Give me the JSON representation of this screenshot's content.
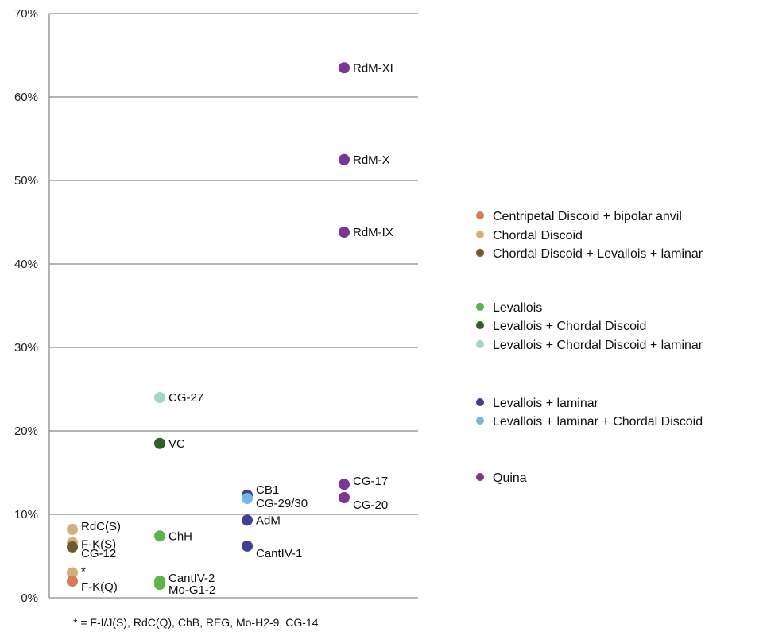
{
  "chart_data": {
    "type": "scatter",
    "title": "",
    "xlabel": "",
    "ylabel": "",
    "ylim": [
      0,
      70
    ],
    "y_ticks": [
      "0%",
      "10%",
      "20%",
      "30%",
      "40%",
      "50%",
      "60%",
      "70%"
    ],
    "grid": true,
    "legend_position": "right",
    "footnote": "* = F-I/J(S), RdC(Q), ChB, REG, Mo-H2-9, CG-14",
    "categories": [
      {
        "name": "Centripetal Discoid + bipolar anvil",
        "color": "#d97b55"
      },
      {
        "name": "Chordal Discoid",
        "color": "#d2b07e"
      },
      {
        "name": "Chordal Discoid + Levallois + laminar",
        "color": "#6e5a2a"
      },
      {
        "name": "Levallois",
        "color": "#5db548"
      },
      {
        "name": "Levallois + Chordal Discoid",
        "color": "#2f5f2a"
      },
      {
        "name": "Levallois + Chordal Discoid + laminar",
        "color": "#a8d4c4"
      },
      {
        "name": "Levallois + laminar",
        "color": "#3f3f9a"
      },
      {
        "name": "Levallois + laminar + Chordal Discoid",
        "color": "#74b8e8"
      },
      {
        "name": "Quina",
        "color": "#7b3596"
      }
    ],
    "points": [
      {
        "label": "RdC(S)",
        "x": 1,
        "y": 8.2,
        "cat": 1
      },
      {
        "label": "F-K(S)",
        "x": 1,
        "y": 6.6,
        "cat": 1
      },
      {
        "label": "CG-12",
        "x": 1,
        "y": 6.1,
        "cat": 2
      },
      {
        "label": "*",
        "x": 1,
        "y": 3.0,
        "cat": 1
      },
      {
        "label": "F-K(Q)",
        "x": 1,
        "y": 2.0,
        "cat": 0
      },
      {
        "label": "CG-27",
        "x": 2,
        "y": 24.0,
        "cat": 5
      },
      {
        "label": "VC",
        "x": 2,
        "y": 18.5,
        "cat": 4
      },
      {
        "label": "ChH",
        "x": 2,
        "y": 7.4,
        "cat": 3
      },
      {
        "label": "CantIV-2",
        "x": 2,
        "y": 2.0,
        "cat": 3
      },
      {
        "label": "Mo-G1-2",
        "x": 2,
        "y": 1.6,
        "cat": 3
      },
      {
        "label": "CB1",
        "x": 3,
        "y": 12.3,
        "cat": 6
      },
      {
        "label": "CG-29/30",
        "x": 3,
        "y": 11.9,
        "cat": 7
      },
      {
        "label": "AdM",
        "x": 3,
        "y": 9.3,
        "cat": 6
      },
      {
        "label": "CantIV-1",
        "x": 3,
        "y": 6.2,
        "cat": 6
      },
      {
        "label": "RdM-XI",
        "x": 4,
        "y": 63.5,
        "cat": 8
      },
      {
        "label": "RdM-X",
        "x": 4,
        "y": 52.5,
        "cat": 8
      },
      {
        "label": "RdM-IX",
        "x": 4,
        "y": 43.8,
        "cat": 8
      },
      {
        "label": "CG-17",
        "x": 4,
        "y": 13.6,
        "cat": 8
      },
      {
        "label": "CG-20",
        "x": 4,
        "y": 12.0,
        "cat": 8
      }
    ]
  }
}
